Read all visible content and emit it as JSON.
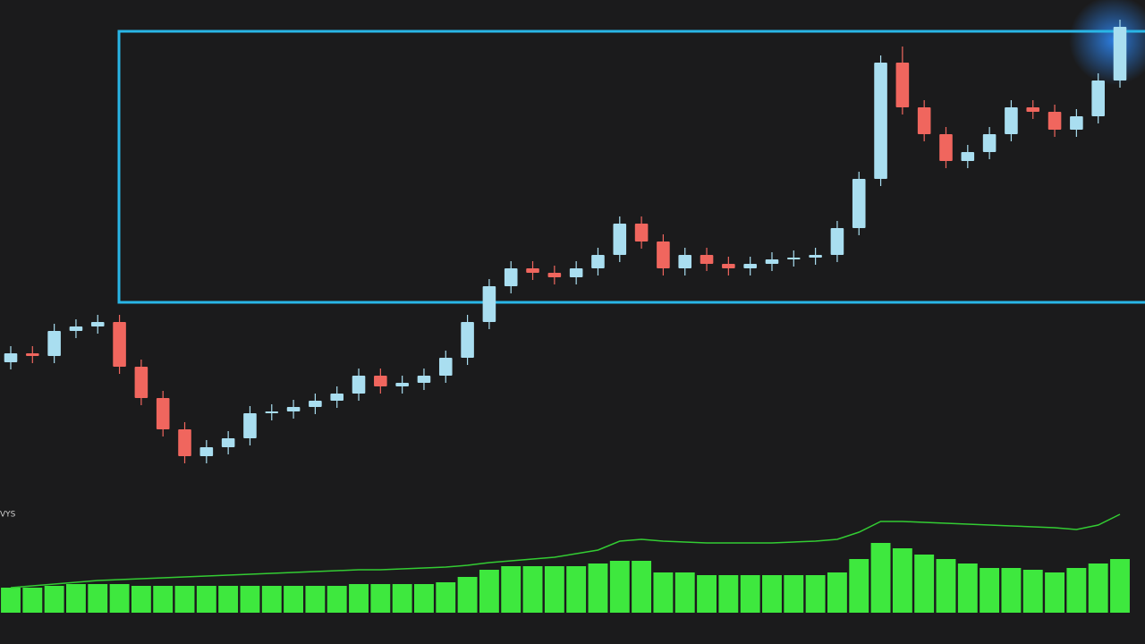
{
  "chart_data": {
    "type": "candlestick",
    "indicator_label": "VYS",
    "ylim": [
      0,
      720
    ],
    "up_color": "#a9def0",
    "down_color": "#f0665e",
    "open": [
      315,
      325,
      322,
      350,
      355,
      360,
      310,
      275,
      240,
      210,
      220,
      230,
      258,
      260,
      265,
      272,
      280,
      300,
      288,
      292,
      300,
      320,
      360,
      400,
      420,
      415,
      410,
      420,
      435,
      470,
      450,
      420,
      435,
      425,
      420,
      425,
      430,
      432,
      435,
      465,
      520,
      650,
      600,
      570,
      540,
      550,
      570,
      600,
      595,
      575,
      590,
      630
    ],
    "high": [
      333,
      333,
      358,
      363,
      368,
      368,
      318,
      283,
      248,
      228,
      238,
      266,
      268,
      273,
      280,
      288,
      308,
      308,
      300,
      308,
      328,
      368,
      408,
      428,
      428,
      423,
      428,
      443,
      478,
      478,
      458,
      443,
      443,
      433,
      433,
      438,
      440,
      443,
      473,
      528,
      658,
      668,
      608,
      578,
      558,
      578,
      608,
      608,
      603,
      598,
      638,
      698
    ],
    "low": [
      307,
      314,
      314,
      342,
      347,
      302,
      267,
      232,
      202,
      202,
      212,
      222,
      250,
      252,
      257,
      264,
      272,
      280,
      280,
      284,
      292,
      312,
      352,
      392,
      407,
      402,
      402,
      412,
      427,
      442,
      412,
      412,
      417,
      412,
      412,
      417,
      422,
      424,
      427,
      457,
      512,
      592,
      562,
      532,
      532,
      542,
      562,
      587,
      567,
      567,
      582,
      622
    ],
    "close": [
      325,
      322,
      350,
      355,
      360,
      310,
      275,
      240,
      210,
      220,
      230,
      258,
      260,
      265,
      272,
      280,
      300,
      288,
      292,
      300,
      320,
      360,
      400,
      420,
      415,
      410,
      420,
      435,
      470,
      450,
      420,
      435,
      425,
      420,
      425,
      430,
      432,
      435,
      465,
      520,
      650,
      600,
      570,
      540,
      550,
      570,
      600,
      595,
      575,
      590,
      630,
      690
    ],
    "y2lim": [
      0,
      115
    ],
    "series": [
      {
        "type": "bar",
        "axis": "y2",
        "color": "#3ee83e",
        "values": [
          28,
          28,
          30,
          32,
          32,
          32,
          30,
          30,
          30,
          30,
          30,
          30,
          30,
          30,
          30,
          30,
          32,
          32,
          32,
          32,
          34,
          40,
          48,
          52,
          52,
          52,
          52,
          55,
          58,
          58,
          45,
          45,
          42,
          42,
          42,
          42,
          42,
          42,
          45,
          60,
          78,
          72,
          65,
          60,
          55,
          50,
          50,
          48,
          45,
          50,
          55,
          60
        ]
      },
      {
        "type": "line",
        "axis": "y2",
        "color": "#33cc33",
        "values": [
          28,
          30,
          32,
          34,
          36,
          37,
          38,
          39,
          40,
          41,
          42,
          43,
          44,
          45,
          46,
          47,
          48,
          48,
          49,
          50,
          51,
          53,
          56,
          58,
          60,
          62,
          66,
          70,
          80,
          82,
          80,
          79,
          78,
          78,
          78,
          78,
          79,
          80,
          82,
          90,
          102,
          102,
          101,
          100,
          99,
          98,
          97,
          96,
          95,
          93,
          98,
          110
        ]
      }
    ]
  }
}
